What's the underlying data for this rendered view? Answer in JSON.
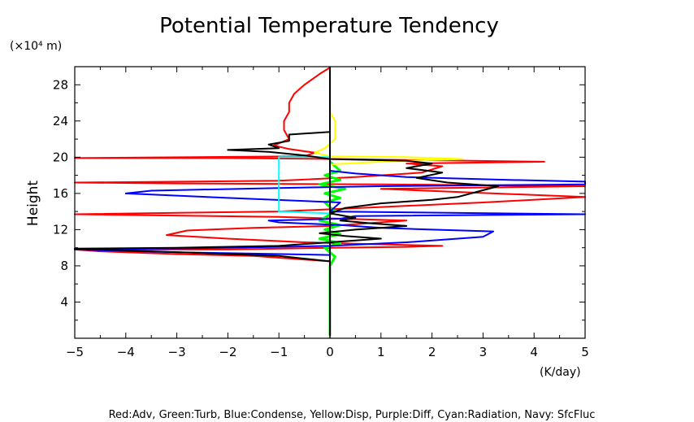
{
  "chart_data": {
    "type": "line",
    "title": "Potential Temperature Tendency",
    "ylabel": "Height",
    "y_units": "(×10⁴ m)",
    "x_units": "(K/day)",
    "caption": "Red:Adv, Green:Turb, Blue:Condense, Yellow:Disp, Purple:Diff, Cyan:Radiation, Navy: SfcFluc",
    "xlim": [
      -5,
      5
    ],
    "ylim": [
      0,
      30
    ],
    "x_ticks": [
      -5,
      -4,
      -3,
      -2,
      -1,
      0,
      1,
      2,
      3,
      4,
      5
    ],
    "y_ticks": [
      4,
      8,
      12,
      16,
      20,
      24,
      28
    ],
    "grid": false,
    "series": [
      {
        "name": "Adv",
        "color": "#ff0000",
        "points": [
          [
            0,
            0.3
          ],
          [
            0,
            4
          ],
          [
            0,
            8.5
          ],
          [
            -1.5,
            9.1
          ],
          [
            -3,
            9.3
          ],
          [
            -4.5,
            9.6
          ],
          [
            -5,
            9.8
          ],
          [
            -2,
            9.8
          ],
          [
            0,
            10.0
          ],
          [
            1.5,
            10.1
          ],
          [
            2.2,
            10.2
          ],
          [
            0.8,
            10.4
          ],
          [
            -0.5,
            10.6
          ],
          [
            -2,
            11.0
          ],
          [
            -3.2,
            11.4
          ],
          [
            -2.8,
            11.9
          ],
          [
            -1.5,
            12.2
          ],
          [
            0,
            12.4
          ],
          [
            1.5,
            13.0
          ],
          [
            -1,
            13.4
          ],
          [
            -5,
            13.7
          ],
          [
            -1,
            14.0
          ],
          [
            1,
            14.5
          ],
          [
            3,
            15.0
          ],
          [
            5,
            15.6
          ],
          [
            1,
            16.5
          ],
          [
            5,
            16.8
          ],
          [
            1,
            17.0
          ],
          [
            -3,
            17.1
          ],
          [
            -5,
            17.2
          ],
          [
            -1,
            17.4
          ],
          [
            0.5,
            17.8
          ],
          [
            1.8,
            18.3
          ],
          [
            2.2,
            19.0
          ],
          [
            1.5,
            19.3
          ],
          [
            4.2,
            19.5
          ],
          [
            1.5,
            19.7
          ],
          [
            0.2,
            19.8
          ],
          [
            -2,
            19.9
          ],
          [
            -5,
            19.9
          ],
          [
            -0.5,
            20.1
          ],
          [
            -0.3,
            20.5
          ],
          [
            -0.8,
            20.9
          ],
          [
            -1.1,
            21.3
          ],
          [
            -0.8,
            22.0
          ],
          [
            -0.9,
            23.0
          ],
          [
            -0.9,
            24.0
          ],
          [
            -0.8,
            25.0
          ],
          [
            -0.8,
            26.0
          ],
          [
            -0.7,
            27.0
          ],
          [
            -0.5,
            28.0
          ],
          [
            -0.2,
            29.2
          ],
          [
            0,
            29.9
          ]
        ]
      },
      {
        "name": "Turb",
        "color": "#00ff00",
        "points": [
          [
            0,
            0.3
          ],
          [
            0,
            8
          ],
          [
            0.1,
            9
          ],
          [
            -0.1,
            10
          ],
          [
            0.2,
            10.5
          ],
          [
            -0.2,
            11
          ],
          [
            0.2,
            11.5
          ],
          [
            -0.1,
            12
          ],
          [
            0.2,
            12.5
          ],
          [
            -0.2,
            13
          ],
          [
            0.1,
            14
          ],
          [
            -0.1,
            15
          ],
          [
            0.2,
            15.5
          ],
          [
            -0.1,
            16
          ],
          [
            0.3,
            16.5
          ],
          [
            -0.2,
            17
          ],
          [
            0.2,
            17.5
          ],
          [
            -0.1,
            18
          ],
          [
            0.2,
            18.5
          ],
          [
            0.1,
            19
          ],
          [
            0,
            19.5
          ]
        ]
      },
      {
        "name": "Condense",
        "color": "#0000ff",
        "points": [
          [
            0,
            0.3
          ],
          [
            0,
            8
          ],
          [
            0,
            9.2
          ],
          [
            -3,
            9.5
          ],
          [
            -5,
            9.8
          ],
          [
            -2,
            10.0
          ],
          [
            0,
            10.2
          ],
          [
            1.5,
            10.6
          ],
          [
            3,
            11.2
          ],
          [
            3.2,
            11.8
          ],
          [
            2,
            12.0
          ],
          [
            1,
            12.2
          ],
          [
            0.2,
            12.5
          ],
          [
            -1,
            12.8
          ],
          [
            -1.2,
            13.0
          ],
          [
            0.2,
            13.2
          ],
          [
            0.5,
            13.5
          ],
          [
            5,
            13.7
          ],
          [
            0,
            14.0
          ],
          [
            0.2,
            15.0
          ],
          [
            -2,
            15.5
          ],
          [
            -4,
            16.0
          ],
          [
            -3.5,
            16.3
          ],
          [
            -1,
            16.6
          ],
          [
            1,
            16.8
          ],
          [
            5,
            17.0
          ],
          [
            5,
            17.3
          ],
          [
            3.5,
            17.5
          ],
          [
            1.5,
            17.8
          ],
          [
            0.5,
            18.2
          ],
          [
            0,
            18.5
          ],
          [
            0,
            29.9
          ]
        ]
      },
      {
        "name": "Disp",
        "color": "#ffff00",
        "points": [
          [
            0,
            17
          ],
          [
            0,
            19.2
          ],
          [
            1,
            19.5
          ],
          [
            2,
            19.7
          ],
          [
            2.6,
            19.8
          ],
          [
            1.5,
            20.0
          ],
          [
            0,
            20.1
          ],
          [
            -0.3,
            20.5
          ],
          [
            -0.1,
            21
          ],
          [
            0.1,
            22
          ],
          [
            0.1,
            24
          ],
          [
            0,
            25
          ]
        ]
      },
      {
        "name": "Diff",
        "color": "#800080",
        "points": [
          [
            0,
            0.3
          ],
          [
            0,
            29.9
          ]
        ]
      },
      {
        "name": "Radiation",
        "color": "#00ffff",
        "points": [
          [
            0,
            0.3
          ],
          [
            0,
            13.8
          ],
          [
            -1,
            14.0
          ],
          [
            -1,
            16
          ],
          [
            -1,
            18.5
          ],
          [
            -1,
            20
          ],
          [
            -0.8,
            20.0
          ],
          [
            0,
            20.0
          ]
        ]
      },
      {
        "name": "SfcFluc",
        "color": "#000080",
        "points": [
          [
            0,
            0.3
          ],
          [
            0,
            29.9
          ]
        ]
      },
      {
        "name": "",
        "color": "#000000",
        "points": [
          [
            0,
            0.3
          ],
          [
            0,
            8.5
          ],
          [
            -1,
            9.1
          ],
          [
            -2.5,
            9.4
          ],
          [
            -4,
            9.7
          ],
          [
            -5,
            9.9
          ],
          [
            -3,
            10.0
          ],
          [
            -1,
            10.2
          ],
          [
            0,
            10.6
          ],
          [
            1,
            11.0
          ],
          [
            0.3,
            11.3
          ],
          [
            -0.2,
            11.6
          ],
          [
            0.5,
            12.0
          ],
          [
            1,
            12.2
          ],
          [
            1.5,
            12.4
          ],
          [
            0.8,
            12.7
          ],
          [
            0.2,
            13.0
          ],
          [
            0.5,
            13.3
          ],
          [
            0,
            13.8
          ],
          [
            0.3,
            14.4
          ],
          [
            1,
            14.9
          ],
          [
            2,
            15.3
          ],
          [
            2.5,
            15.6
          ],
          [
            2.9,
            16.2
          ],
          [
            3.3,
            16.8
          ],
          [
            2.3,
            17.2
          ],
          [
            1.7,
            17.7
          ],
          [
            2.2,
            18.3
          ],
          [
            1.5,
            18.8
          ],
          [
            2,
            19.3
          ],
          [
            1.5,
            19.6
          ],
          [
            0.8,
            19.7
          ],
          [
            0,
            19.8
          ],
          [
            -0.5,
            20.2
          ],
          [
            -1.2,
            20.6
          ],
          [
            -2,
            20.8
          ],
          [
            -1,
            21.0
          ],
          [
            -1.2,
            21.4
          ],
          [
            -0.8,
            21.8
          ],
          [
            -0.8,
            22.5
          ],
          [
            0,
            22.8
          ],
          [
            0,
            29.9
          ]
        ]
      }
    ]
  }
}
